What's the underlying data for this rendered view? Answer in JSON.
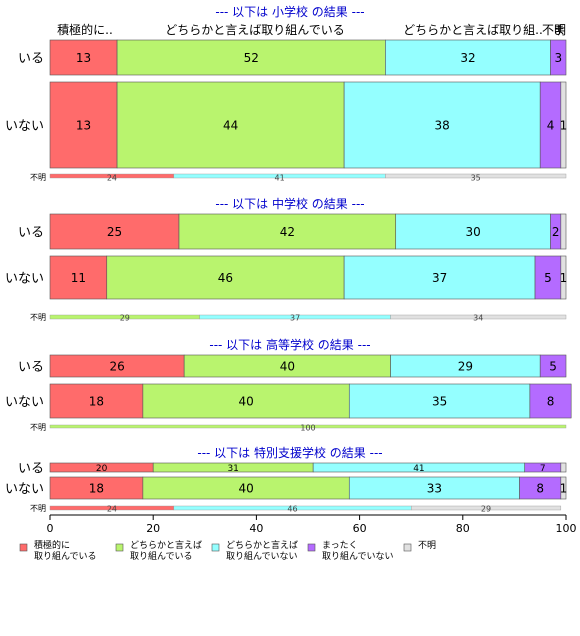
{
  "chart_data": {
    "type": "bar",
    "orientation": "horizontal",
    "stacked": "percent",
    "xlim": [
      0,
      100
    ],
    "x_ticks": [
      "0",
      "20",
      "40",
      "60",
      "80",
      "100"
    ],
    "colors": [
      "#ff6b6b",
      "#b9f46e",
      "#94ffff",
      "#b46bff",
      "#e1e1e1"
    ],
    "legend": {
      "placement": "bottom-left",
      "entries": [
        {
          "line1": "積極的に",
          "line2": "取り組んでいる"
        },
        {
          "line1": "どちらかと言えば",
          "line2": "取り組んでいる"
        },
        {
          "line1": "どちらかと言えば",
          "line2": "取り組んでいない"
        },
        {
          "line1": "まったく",
          "line2": "取り組んでいない"
        },
        {
          "line1": "不明",
          "line2": ""
        }
      ]
    },
    "top_labels": [
      "積極的に..",
      "どちらかと言えば取り組んでいる",
      "どちらかと言えば取り組..",
      "ま",
      "不明"
    ],
    "panels": [
      {
        "title": "--- 以下は 小学校 の結果 ---",
        "rows": [
          {
            "label": "いる",
            "values": [
              13,
              52,
              32,
              3,
              0
            ],
            "labels": [
              "13",
              "52",
              "32",
              "3",
              ""
            ]
          },
          {
            "label": "いない",
            "values": [
              13,
              44,
              38,
              4,
              1
            ],
            "labels": [
              "13",
              "44",
              "38",
              "4",
              "1"
            ]
          }
        ],
        "unknown": {
          "label": "不明",
          "values": [
            24,
            0,
            41,
            0,
            35
          ],
          "labels": [
            "24",
            "",
            "41",
            "",
            "35"
          ]
        }
      },
      {
        "title": "--- 以下は 中学校 の結果 ---",
        "rows": [
          {
            "label": "いる",
            "values": [
              25,
              42,
              30,
              2,
              1
            ],
            "labels": [
              "25",
              "42",
              "30",
              "2",
              ""
            ]
          },
          {
            "label": "いない",
            "values": [
              11,
              46,
              37,
              5,
              1
            ],
            "labels": [
              "11",
              "46",
              "37",
              "5",
              "1"
            ]
          }
        ],
        "unknown": {
          "label": "不明",
          "values": [
            0,
            29,
            37,
            0,
            34
          ],
          "labels": [
            "",
            "29",
            "37",
            "",
            "34"
          ]
        }
      },
      {
        "title": "--- 以下は 高等学校 の結果 ---",
        "rows": [
          {
            "label": "いる",
            "values": [
              26,
              40,
              29,
              5,
              0
            ],
            "labels": [
              "26",
              "40",
              "29",
              "5",
              ""
            ]
          },
          {
            "label": "いない",
            "values": [
              18,
              40,
              35,
              8,
              0
            ],
            "labels": [
              "18",
              "40",
              "35",
              "8",
              ""
            ]
          }
        ],
        "unknown": {
          "label": "不明",
          "values": [
            0,
            100,
            0,
            0,
            0
          ],
          "labels": [
            "",
            "100",
            "",
            "",
            ""
          ]
        }
      },
      {
        "title": "--- 以下は 特別支援学校 の結果 ---",
        "rows": [
          {
            "label": "いる",
            "values": [
              20,
              31,
              41,
              7,
              1
            ],
            "labels": [
              "20",
              "31",
              "41",
              "7",
              ""
            ]
          },
          {
            "label": "いない",
            "values": [
              18,
              40,
              33,
              8,
              1
            ],
            "labels": [
              "18",
              "40",
              "33",
              "8",
              "1"
            ]
          }
        ],
        "unknown": {
          "label": "不明",
          "values": [
            24,
            0,
            46,
            0,
            29
          ],
          "labels": [
            "24",
            "",
            "46",
            "",
            "29"
          ]
        }
      }
    ]
  }
}
